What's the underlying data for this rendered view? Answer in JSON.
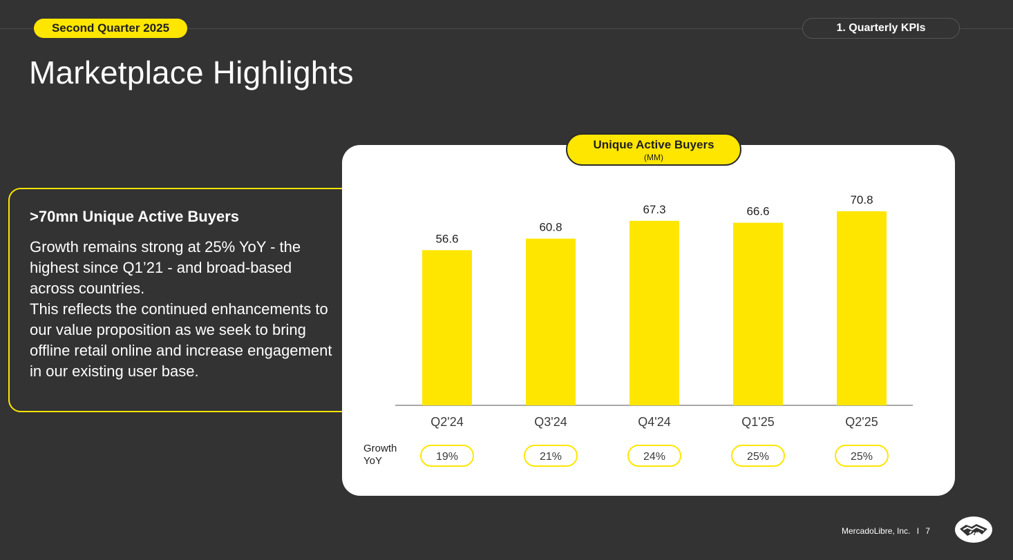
{
  "header": {
    "quarter_badge": "Second Quarter 2025",
    "section_label": "1. Quarterly KPIs",
    "title": "Marketplace Highlights"
  },
  "callout": {
    "title": ">70mn Unique Active Buyers",
    "paragraph1": "Growth remains strong at 25% YoY - the highest since Q1’21 - and broad-based across countries.",
    "paragraph2": "This reflects the continued enhancements to our value proposition as we seek to bring offline retail online and increase engagement in our existing user base."
  },
  "chart_data": {
    "type": "bar",
    "title": "Unique Active Buyers",
    "unit": "(MM)",
    "categories": [
      "Q2'24",
      "Q3'24",
      "Q4'24",
      "Q1'25",
      "Q2'25"
    ],
    "values": [
      56.6,
      60.8,
      67.3,
      66.6,
      70.8
    ],
    "value_labels": [
      "56.6",
      "60.8",
      "67.3",
      "66.6",
      "70.8"
    ],
    "growth_label": "Growth YoY",
    "growth_yoy": [
      "19%",
      "21%",
      "24%",
      "25%",
      "25%"
    ],
    "bar_color": "#ffe600",
    "grid": false,
    "legend": "none"
  },
  "footer": {
    "company": "MercadoLibre, Inc.",
    "separator": "I",
    "page_number": "7"
  },
  "colors": {
    "background": "#333333",
    "accent": "#ffe600",
    "card": "#ffffff",
    "text_dark": "#1f1f1f"
  },
  "icons": {
    "logo": "handshake-logo-icon"
  }
}
